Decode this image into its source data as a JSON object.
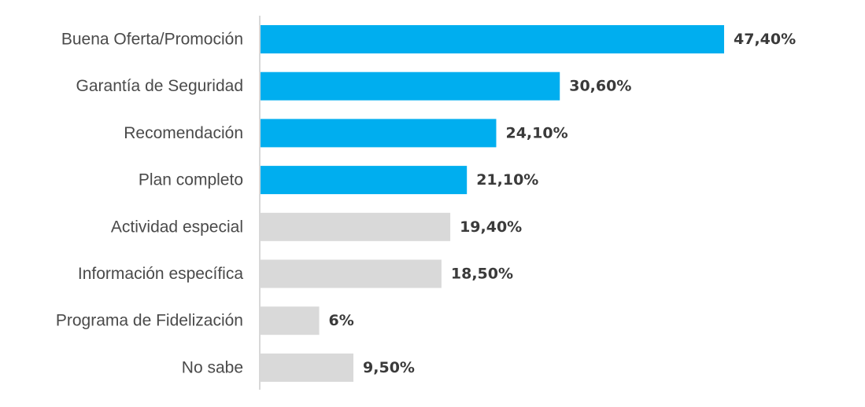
{
  "chart_data": {
    "type": "bar",
    "orientation": "horizontal",
    "title": "",
    "xlabel": "",
    "ylabel": "",
    "categories": [
      "Buena Oferta/Promoción",
      "Garantía de Seguridad",
      "Recomendación",
      "Plan completo",
      "Actividad especial",
      "Información específica",
      "Programa de Fidelización",
      "No sabe"
    ],
    "values": [
      47.4,
      30.6,
      24.1,
      21.1,
      19.4,
      18.5,
      6,
      9.5
    ],
    "value_labels": [
      "47,40%",
      "30,60%",
      "24,10%",
      "21,10%",
      "19,40%",
      "18,50%",
      "6%",
      "9,50%"
    ],
    "bar_colors": [
      "#00AEEF",
      "#00AEEF",
      "#00AEEF",
      "#00AEEF",
      "#D9D9D9",
      "#D9D9D9",
      "#D9D9D9",
      "#D9D9D9"
    ],
    "xlim": [
      0,
      47.4
    ],
    "grid": false,
    "legend": "none"
  },
  "colors": {
    "highlight": "#00AEEF",
    "muted": "#D9D9D9",
    "axis": "#cccccc"
  }
}
